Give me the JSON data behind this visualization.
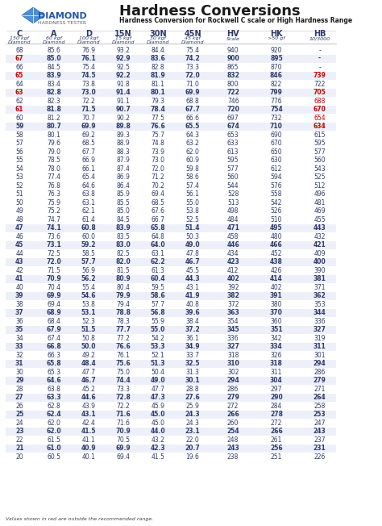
{
  "title": "Hardness Conversions",
  "subtitle": "Hardness Conversion for Rockwell C scale or High Hardness Range",
  "columns": [
    "C",
    "A",
    "D",
    "15N",
    "30N",
    "45N",
    "HV",
    "HK",
    "HB"
  ],
  "col_subtitles": [
    "150 kgf\nDiamond",
    "60 kgf\nDiamond",
    "100 kgf\nDiamond",
    "15 kgf\nDiamond",
    "30 kgf\nDiamond",
    "45 kgf\nDiamond",
    "Scale",
    ">50 gf",
    "10/3000"
  ],
  "rows": [
    [
      68,
      85.6,
      76.9,
      93.2,
      84.4,
      75.4,
      940,
      920,
      "-"
    ],
    [
      67,
      85.0,
      76.1,
      92.9,
      83.6,
      74.2,
      900,
      895,
      "-"
    ],
    [
      66,
      84.5,
      75.4,
      92.5,
      82.8,
      73.3,
      865,
      870,
      "-"
    ],
    [
      65,
      83.9,
      74.5,
      92.2,
      81.9,
      72.0,
      832,
      846,
      "739"
    ],
    [
      64,
      83.4,
      73.8,
      91.8,
      81.1,
      71.0,
      800,
      822,
      "722"
    ],
    [
      63,
      82.8,
      73.0,
      91.4,
      80.1,
      69.9,
      722,
      799,
      "705"
    ],
    [
      62,
      82.3,
      72.2,
      91.1,
      79.3,
      68.8,
      746,
      776,
      "688"
    ],
    [
      61,
      81.8,
      71.5,
      90.7,
      78.4,
      67.7,
      720,
      754,
      "670"
    ],
    [
      60,
      81.2,
      70.7,
      90.2,
      77.5,
      66.6,
      697,
      732,
      "654"
    ],
    [
      59,
      80.7,
      69.9,
      89.8,
      76.6,
      65.5,
      674,
      710,
      "634"
    ],
    [
      58,
      80.1,
      69.2,
      89.3,
      75.7,
      64.3,
      653,
      690,
      "615"
    ],
    [
      57,
      79.6,
      68.5,
      88.9,
      74.8,
      63.2,
      633,
      670,
      "595"
    ],
    [
      56,
      79.0,
      67.7,
      88.3,
      73.9,
      62.0,
      613,
      650,
      "577"
    ],
    [
      55,
      78.5,
      66.9,
      87.9,
      73.0,
      60.9,
      595,
      630,
      "560"
    ],
    [
      54,
      78.0,
      66.1,
      87.4,
      72.0,
      59.8,
      577,
      612,
      "543"
    ],
    [
      53,
      77.4,
      65.4,
      86.9,
      71.2,
      58.6,
      560,
      594,
      "525"
    ],
    [
      52,
      76.8,
      64.6,
      86.4,
      70.2,
      57.4,
      544,
      576,
      "512"
    ],
    [
      51,
      76.3,
      63.8,
      85.9,
      69.4,
      56.1,
      528,
      558,
      "496"
    ],
    [
      50,
      75.9,
      63.1,
      85.5,
      68.5,
      55.0,
      513,
      542,
      "481"
    ],
    [
      49,
      75.2,
      62.1,
      85.0,
      67.6,
      53.8,
      498,
      526,
      "469"
    ],
    [
      48,
      74.7,
      61.4,
      84.5,
      66.7,
      52.5,
      484,
      510,
      "455"
    ],
    [
      47,
      74.1,
      60.8,
      83.9,
      65.8,
      51.4,
      471,
      495,
      "443"
    ],
    [
      46,
      73.6,
      60.0,
      83.5,
      64.8,
      50.3,
      458,
      480,
      "432"
    ],
    [
      45,
      73.1,
      59.2,
      83.0,
      64.0,
      49.0,
      446,
      466,
      "421"
    ],
    [
      44,
      72.5,
      58.5,
      82.5,
      63.1,
      47.8,
      434,
      452,
      "409"
    ],
    [
      43,
      72.0,
      57.7,
      82.0,
      62.2,
      46.7,
      423,
      438,
      "400"
    ],
    [
      42,
      71.5,
      56.9,
      81.5,
      61.3,
      45.5,
      412,
      426,
      "390"
    ],
    [
      41,
      70.9,
      56.2,
      80.9,
      60.4,
      44.3,
      402,
      414,
      "381"
    ],
    [
      40,
      70.4,
      55.4,
      80.4,
      59.5,
      43.1,
      392,
      402,
      "371"
    ],
    [
      39,
      69.9,
      54.6,
      79.9,
      58.6,
      41.9,
      382,
      391,
      "362"
    ],
    [
      38,
      69.4,
      53.8,
      79.4,
      57.7,
      40.8,
      372,
      380,
      "353"
    ],
    [
      37,
      68.9,
      53.1,
      78.8,
      56.8,
      39.6,
      363,
      370,
      "344"
    ],
    [
      36,
      68.4,
      52.3,
      78.3,
      55.9,
      38.4,
      354,
      360,
      "336"
    ],
    [
      35,
      67.9,
      51.5,
      77.7,
      55.0,
      37.2,
      345,
      351,
      "327"
    ],
    [
      34,
      67.4,
      50.8,
      77.2,
      54.2,
      36.1,
      336,
      342,
      "319"
    ],
    [
      33,
      66.8,
      50.0,
      76.6,
      53.3,
      34.9,
      327,
      334,
      "311"
    ],
    [
      32,
      66.3,
      49.2,
      76.1,
      52.1,
      33.7,
      318,
      326,
      "301"
    ],
    [
      31,
      65.8,
      48.4,
      75.6,
      51.3,
      32.5,
      310,
      318,
      "294"
    ],
    [
      30,
      65.3,
      47.7,
      75.0,
      50.4,
      31.3,
      302,
      311,
      "286"
    ],
    [
      29,
      64.6,
      46.7,
      74.4,
      49.0,
      30.1,
      294,
      304,
      "279"
    ],
    [
      28,
      63.8,
      45.2,
      73.3,
      47.7,
      28.8,
      286,
      297,
      "271"
    ],
    [
      27,
      63.3,
      44.6,
      72.8,
      47.3,
      27.6,
      279,
      290,
      "264"
    ],
    [
      26,
      62.8,
      43.9,
      72.2,
      45.9,
      25.9,
      272,
      284,
      "258"
    ],
    [
      25,
      62.4,
      43.1,
      71.6,
      45.0,
      24.3,
      266,
      278,
      "253"
    ],
    [
      24,
      62.0,
      42.4,
      71.6,
      45.0,
      24.3,
      260,
      272,
      "247"
    ],
    [
      23,
      62.0,
      41.5,
      70.9,
      44.0,
      23.1,
      254,
      266,
      "243"
    ],
    [
      22,
      61.5,
      41.1,
      70.5,
      43.2,
      22.0,
      248,
      261,
      "237"
    ],
    [
      21,
      61.0,
      40.9,
      69.9,
      42.3,
      20.7,
      243,
      256,
      "231"
    ],
    [
      20,
      60.5,
      40.1,
      69.4,
      41.5,
      19.6,
      238,
      251,
      "226"
    ]
  ],
  "red_rows": [
    67,
    65,
    63,
    61,
    59
  ],
  "red_hb_rows": [
    65,
    63,
    62,
    61,
    60,
    59
  ],
  "highlight_rows": [
    67,
    65,
    63,
    61,
    59,
    47,
    45,
    43,
    41,
    39,
    37,
    35,
    33,
    31,
    29,
    27,
    25,
    23,
    21
  ],
  "footer": "Values shown in red are outside the recommended range.",
  "bg_color": "#ffffff",
  "header_color": "#dde3f0",
  "alt_row_color": "#edf0f8",
  "text_color": "#2d3a6b",
  "red_color": "#cc0000",
  "title_color": "#1a1a1a",
  "subtitle_color": "#1a1a1a"
}
